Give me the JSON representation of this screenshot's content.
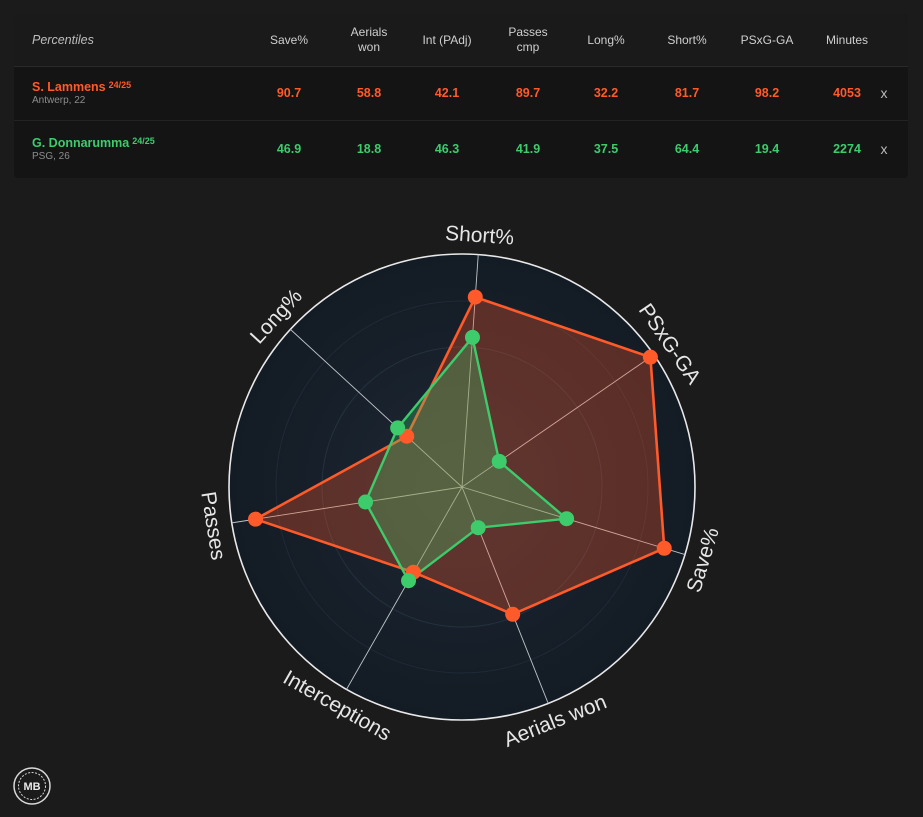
{
  "table": {
    "title": "Percentiles",
    "columns": [
      "Save%",
      "Aerials\nwon",
      "Int (PAdj)",
      "Passes\ncmp",
      "Long%",
      "Short%",
      "PSxG-GA",
      "Minutes"
    ],
    "players": [
      {
        "name": "S. Lammens",
        "season": "24/25",
        "meta": "Antwerp, 22",
        "color": "#ff5a2a",
        "values": [
          "90.7",
          "58.8",
          "42.1",
          "89.7",
          "32.2",
          "81.7",
          "98.2",
          "4053"
        ],
        "remove": "x"
      },
      {
        "name": "G. Donnarumma",
        "season": "24/25",
        "meta": "PSG, 26",
        "color": "#3ecb6c",
        "values": [
          "46.9",
          "18.8",
          "46.3",
          "41.9",
          "37.5",
          "64.4",
          "19.4",
          "2274"
        ],
        "remove": "x"
      }
    ]
  },
  "chart_data": {
    "type": "radar",
    "axes": [
      "Short%",
      "PSxG-GA",
      "Save%",
      "Aerials won",
      "Interceptions",
      "Passes",
      "Long%"
    ],
    "range": [
      0,
      100
    ],
    "series": [
      {
        "name": "S. Lammens",
        "color": "#ff5a2a",
        "values": [
          81.7,
          98.2,
          90.7,
          58.8,
          42.1,
          89.7,
          32.2
        ]
      },
      {
        "name": "G. Donnarumma",
        "color": "#3ecb6c",
        "values": [
          64.4,
          19.4,
          46.9,
          18.8,
          46.3,
          41.9,
          37.5
        ]
      }
    ]
  },
  "logo": {
    "text": "MB"
  }
}
